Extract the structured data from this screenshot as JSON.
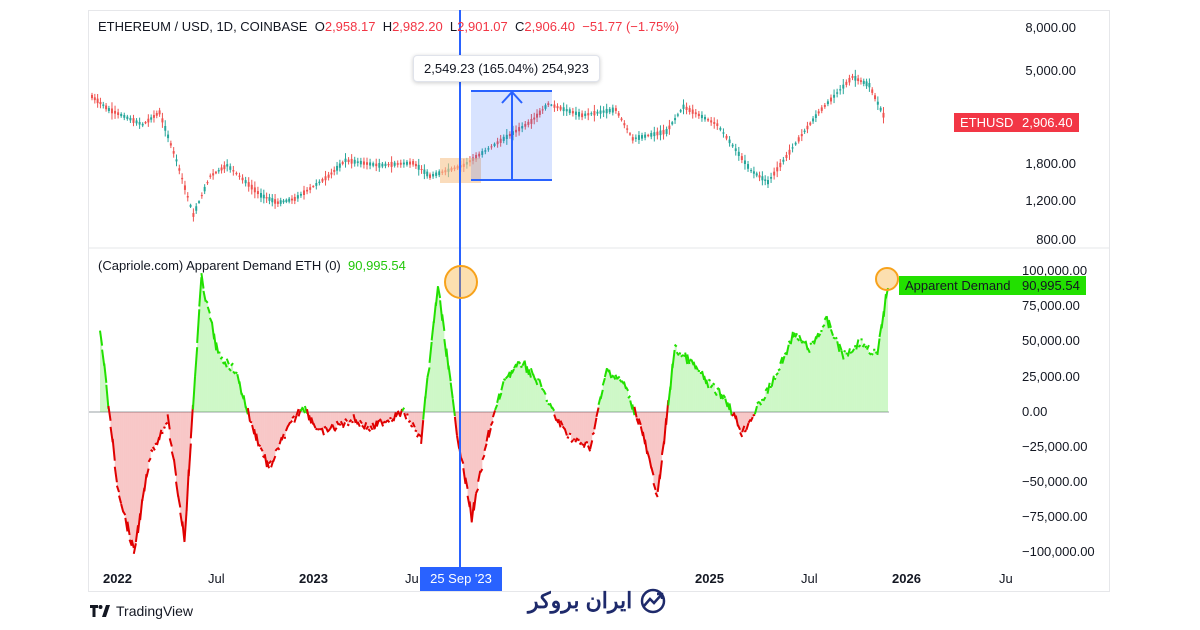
{
  "top_legend": {
    "symbol": "ETHEREUM / USD, 1D, COINBASE",
    "o_label": "O",
    "o_value": "2,958.17",
    "h_label": "H",
    "h_value": "2,982.20",
    "l_label": "L",
    "l_value": "2,901.07",
    "c_label": "C",
    "c_value": "2,906.40",
    "change": "−51.77 (−1.75%)"
  },
  "bottom_legend": {
    "name": "(Capriole.com) Apparent Demand ETH (0)",
    "value": "90,995.54"
  },
  "price_axis_labels": [
    "8,000.00",
    "5,000.00",
    "1,800.00",
    "1,200.00",
    "800.00"
  ],
  "demand_axis_labels": [
    "100,000.00",
    "75,000.00",
    "50,000.00",
    "25,000.00",
    "0.00",
    "−25,000.00",
    "−50,000.00",
    "−75,000.00",
    "−100,000.00"
  ],
  "x_axis_labels": [
    {
      "text": "2022",
      "bold": true
    },
    {
      "text": "Jul",
      "bold": false
    },
    {
      "text": "2023",
      "bold": true
    },
    {
      "text": "Ju",
      "bold": false
    },
    {
      "text": "2025",
      "bold": true
    },
    {
      "text": "Jul",
      "bold": false
    },
    {
      "text": "2026",
      "bold": true
    },
    {
      "text": "Ju",
      "bold": false
    }
  ],
  "price_badge": {
    "symbol": "ETHUSD",
    "value": "2,906.40",
    "color": "#f23645"
  },
  "demand_badge": {
    "label": "Apparent Demand",
    "value": "90,995.54",
    "color": "#22e000"
  },
  "measure_tooltip": "2,549.23 (165.04%) 254,923",
  "crosshair_date": "25 Sep '23",
  "footer": {
    "tradingview": "TradingView",
    "brand": "ایران بروکر"
  },
  "colors": {
    "up": "#26a69a",
    "down": "#ef5350",
    "demand_pos": "#22e000",
    "demand_neg": "#e00000",
    "crosshair": "#2962ff"
  },
  "chart_data": [
    {
      "type": "line",
      "title": "ETHEREUM / USD, 1D, COINBASE",
      "xlabel": "",
      "ylabel": "",
      "scale": "log",
      "ylim": [
        800,
        8000
      ],
      "x": [
        "2022-01",
        "2022-02",
        "2022-04",
        "2022-05",
        "2022-06",
        "2022-07",
        "2022-08",
        "2022-09",
        "2022-11",
        "2022-12",
        "2023-01",
        "2023-03",
        "2023-04",
        "2023-06",
        "2023-08",
        "2023-09",
        "2023-11",
        "2024-01",
        "2024-03",
        "2024-04",
        "2024-06",
        "2024-08",
        "2024-09",
        "2024-11",
        "2024-12",
        "2025-02",
        "2025-04",
        "2025-05",
        "2025-07",
        "2025-08",
        "2025-10",
        "2025-11",
        "2025-12"
      ],
      "series": [
        {
          "name": "ETHUSD",
          "values": [
            3800,
            3300,
            2800,
            3200,
            1900,
            1050,
            1600,
            1800,
            1300,
            1200,
            1250,
            1600,
            1900,
            1800,
            1850,
            1600,
            1800,
            2300,
            2900,
            3500,
            3100,
            3300,
            2400,
            2600,
            3400,
            2800,
            1700,
            1500,
            2500,
            3200,
            4700,
            4300,
            2906.4
          ]
        }
      ]
    },
    {
      "type": "area",
      "title": "(Capriole.com) Apparent Demand ETH (0)",
      "xlabel": "",
      "ylabel": "",
      "ylim": [
        -110000,
        110000
      ],
      "x": [
        "2022-01",
        "2022-02",
        "2022-03",
        "2022-04",
        "2022-05",
        "2022-06",
        "2022-07",
        "2022-08",
        "2022-09",
        "2022-10",
        "2022-11",
        "2022-12",
        "2023-01",
        "2023-02",
        "2023-03",
        "2023-04",
        "2023-05",
        "2023-06",
        "2023-07",
        "2023-08",
        "2023-09",
        "2023-10",
        "2023-11",
        "2023-12",
        "2024-01",
        "2024-02",
        "2024-03",
        "2024-04",
        "2024-05",
        "2024-06",
        "2024-07",
        "2024-08",
        "2024-09",
        "2024-10",
        "2024-11",
        "2024-12",
        "2025-01",
        "2025-02",
        "2025-03",
        "2025-04",
        "2025-05",
        "2025-06",
        "2025-07",
        "2025-08",
        "2025-09",
        "2025-10",
        "2025-11",
        "2025-12"
      ],
      "series": [
        {
          "name": "Apparent Demand ETH",
          "values": [
            60000,
            -50000,
            -100000,
            -30000,
            -5000,
            -90000,
            95000,
            40000,
            30000,
            -10000,
            -40000,
            -15000,
            5000,
            -15000,
            -10000,
            -5000,
            -12000,
            -5000,
            0,
            -20000,
            90000,
            -5000,
            -75000,
            -15000,
            25000,
            35000,
            20000,
            -5000,
            -20000,
            -25000,
            30000,
            20000,
            -10000,
            -60000,
            45000,
            35000,
            20000,
            10000,
            -15000,
            5000,
            25000,
            55000,
            45000,
            65000,
            40000,
            50000,
            40000,
            90995.54
          ]
        }
      ]
    }
  ]
}
